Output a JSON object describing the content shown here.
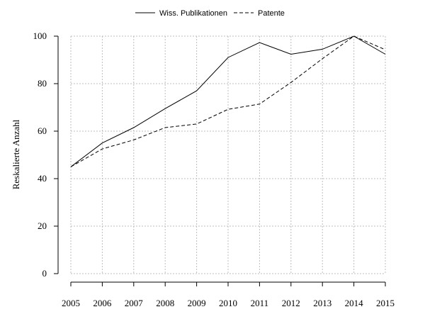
{
  "chart_data": {
    "type": "line",
    "title": "",
    "xlabel": "",
    "ylabel": "Reskalierte Anzahl",
    "x": [
      2005,
      2006,
      2007,
      2008,
      2009,
      2010,
      2011,
      2012,
      2013,
      2014,
      2015
    ],
    "xlim": [
      2005,
      2015
    ],
    "ylim": [
      0,
      100
    ],
    "yticks": [
      0,
      20,
      40,
      60,
      80,
      100
    ],
    "grid": true,
    "legend_position": "top-center",
    "series": [
      {
        "name": "Wiss. Publikationen",
        "line_style": "solid",
        "values": [
          45,
          55,
          61.5,
          69.5,
          77,
          91,
          97.3,
          92.4,
          94.5,
          100,
          92.4
        ]
      },
      {
        "name": "Patente",
        "line_style": "dashed",
        "values": [
          45,
          52.5,
          56.3,
          61.5,
          63,
          69.2,
          71.4,
          80.5,
          90.5,
          100,
          94.3
        ]
      }
    ]
  }
}
